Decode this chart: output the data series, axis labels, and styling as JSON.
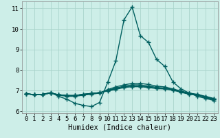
{
  "bg_color": "#cdeee8",
  "grid_color": "#aad4cc",
  "line_color": "#005f5f",
  "line_width": 1.0,
  "marker": "+",
  "marker_size": 4,
  "marker_ew": 1.0,
  "xlabel": "Humidex (Indice chaleur)",
  "xlabel_fontsize": 7.5,
  "tick_fontsize": 6.5,
  "xlim": [
    -0.5,
    23.5
  ],
  "ylim": [
    5.9,
    11.35
  ],
  "yticks": [
    6,
    7,
    8,
    9,
    10,
    11
  ],
  "xticks": [
    0,
    1,
    2,
    3,
    4,
    5,
    6,
    7,
    8,
    9,
    10,
    11,
    12,
    13,
    14,
    15,
    16,
    17,
    18,
    19,
    20,
    21,
    22,
    23
  ],
  "series": [
    [
      6.85,
      6.8,
      6.82,
      6.9,
      6.72,
      6.58,
      6.38,
      6.28,
      6.22,
      6.42,
      7.4,
      8.45,
      10.45,
      11.08,
      9.68,
      9.35,
      8.52,
      8.18,
      7.42,
      7.08,
      6.88,
      6.72,
      6.62,
      6.52
    ],
    [
      6.85,
      6.8,
      6.82,
      6.88,
      6.78,
      6.72,
      6.72,
      6.78,
      6.82,
      6.88,
      7.05,
      7.18,
      7.28,
      7.35,
      7.35,
      7.3,
      7.22,
      7.18,
      7.08,
      6.98,
      6.88,
      6.82,
      6.72,
      6.62
    ],
    [
      6.85,
      6.8,
      6.82,
      6.88,
      6.8,
      6.76,
      6.76,
      6.82,
      6.86,
      6.9,
      7.02,
      7.12,
      7.22,
      7.28,
      7.28,
      7.22,
      7.16,
      7.12,
      7.06,
      6.96,
      6.86,
      6.8,
      6.7,
      6.6
    ],
    [
      6.85,
      6.8,
      6.82,
      6.88,
      6.8,
      6.76,
      6.76,
      6.82,
      6.86,
      6.9,
      7.0,
      7.1,
      7.18,
      7.22,
      7.22,
      7.18,
      7.12,
      7.1,
      7.04,
      6.94,
      6.84,
      6.8,
      6.68,
      6.58
    ],
    [
      6.85,
      6.8,
      6.82,
      6.88,
      6.8,
      6.76,
      6.76,
      6.82,
      6.86,
      6.9,
      6.98,
      7.06,
      7.15,
      7.19,
      7.19,
      7.15,
      7.1,
      7.08,
      7.02,
      6.92,
      6.82,
      6.78,
      6.66,
      6.56
    ]
  ]
}
